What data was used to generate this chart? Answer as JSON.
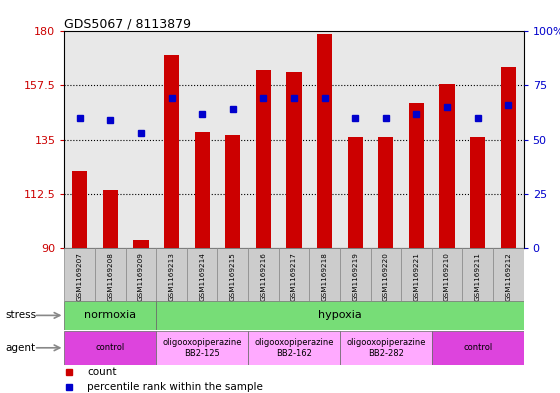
{
  "title": "GDS5067 / 8113879",
  "samples": [
    "GSM1169207",
    "GSM1169208",
    "GSM1169209",
    "GSM1169213",
    "GSM1169214",
    "GSM1169215",
    "GSM1169216",
    "GSM1169217",
    "GSM1169218",
    "GSM1169219",
    "GSM1169220",
    "GSM1169221",
    "GSM1169210",
    "GSM1169211",
    "GSM1169212"
  ],
  "bar_heights": [
    122,
    114,
    93,
    170,
    138,
    137,
    164,
    163,
    179,
    136,
    136,
    150,
    158,
    136,
    165
  ],
  "dot_values_pct": [
    60,
    59,
    53,
    69,
    62,
    64,
    69,
    69,
    69,
    60,
    60,
    62,
    65,
    60,
    66
  ],
  "bar_color": "#cc0000",
  "dot_color": "#0000cc",
  "ylim_left": [
    90,
    180
  ],
  "ylim_right": [
    0,
    100
  ],
  "yticks_left": [
    90,
    112.5,
    135,
    157.5,
    180
  ],
  "yticks_right": [
    0,
    25,
    50,
    75,
    100
  ],
  "ytick_labels_left": [
    "90",
    "112.5",
    "135",
    "157.5",
    "180"
  ],
  "ytick_labels_right": [
    "0",
    "25",
    "50",
    "75",
    "100%"
  ],
  "stress_row": [
    {
      "label": "normoxia",
      "start": 0,
      "end": 3,
      "color": "#77dd77"
    },
    {
      "label": "hypoxia",
      "start": 3,
      "end": 15,
      "color": "#77dd77"
    }
  ],
  "agent_row": [
    {
      "label": "control",
      "start": 0,
      "end": 3,
      "color": "#dd44dd"
    },
    {
      "label": "oligooxopiperazine\nBB2-125",
      "start": 3,
      "end": 6,
      "color": "#ffaaff"
    },
    {
      "label": "oligooxopiperazine\nBB2-162",
      "start": 6,
      "end": 9,
      "color": "#ffaaff"
    },
    {
      "label": "oligooxopiperazine\nBB2-282",
      "start": 9,
      "end": 12,
      "color": "#ffaaff"
    },
    {
      "label": "control",
      "start": 12,
      "end": 15,
      "color": "#dd44dd"
    }
  ],
  "plot_bg": "#e8e8e8",
  "xtick_bg": "#cccccc",
  "fig_bg": "#ffffff",
  "legend_square_size": 6
}
